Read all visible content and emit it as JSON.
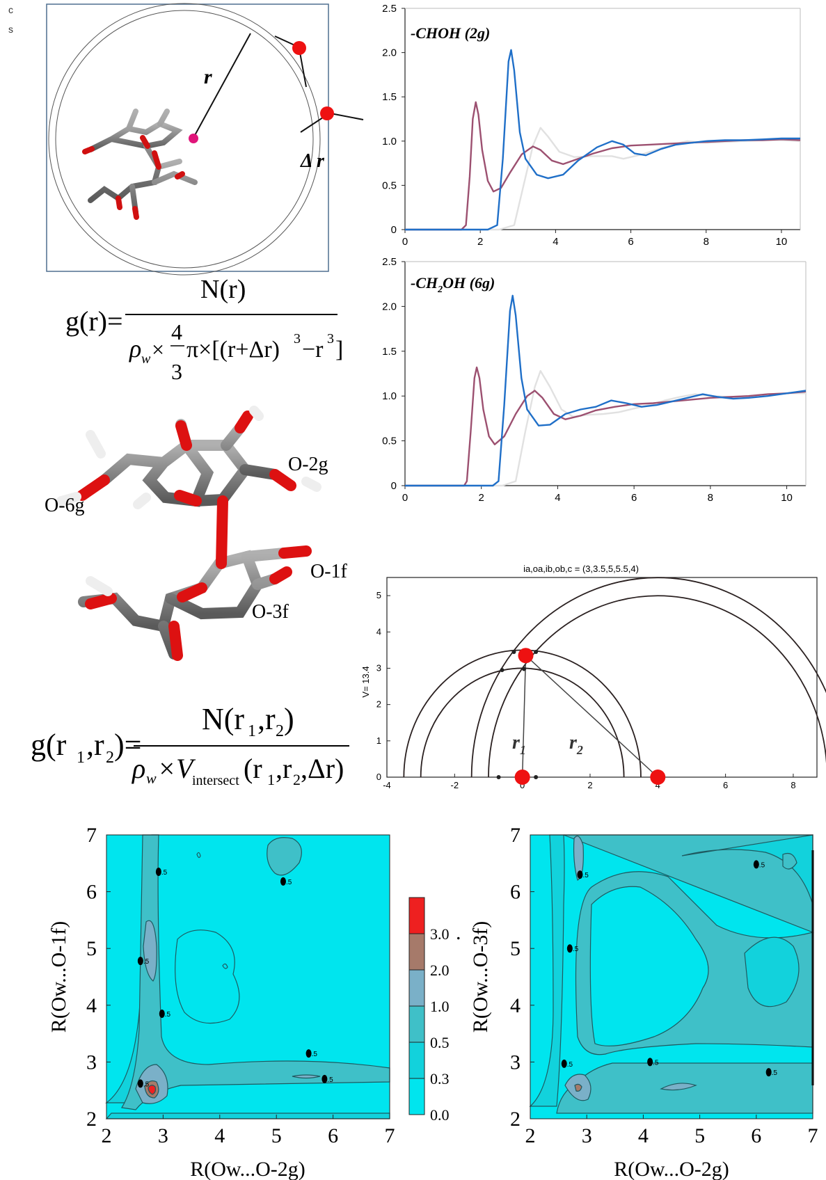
{
  "side_letters": [
    "c",
    "s"
  ],
  "schematic": {
    "r_label": "r",
    "dr_label": "Δ r"
  },
  "equation1": {
    "g": "g(r)=",
    "numerator": "N(r)",
    "denominator_a": "ρ",
    "denominator_w": "w",
    "times": "×",
    "four": "4",
    "three": "3",
    "rest": "π×[(r+Δr)",
    "cube": "3",
    "minus": "−r",
    "close": "]"
  },
  "molecule_labels": {
    "o2g": "O-2g",
    "o6g": "O-6g",
    "o1f": "O-1f",
    "o3f": "O-3f"
  },
  "equation2": {
    "g": "g(r",
    "sub1": "1",
    "comma": ",r",
    "sub2": "2",
    "close": ")=",
    "numerator": "N(r",
    "num_sub1": "1",
    "num_comma": ",r",
    "num_sub2": "2",
    "num_close": ")",
    "rho": "ρ",
    "w": "w",
    "times": "×V",
    "intersect": "intersect",
    "args": "(r",
    "a_sub1": "1",
    "a_comma": ",r",
    "a_sub2": "2",
    "a_close": ",Δr)"
  },
  "chart_data": [
    {
      "type": "line",
      "title": "-CHOH (2g)",
      "xlim": [
        0,
        10.5
      ],
      "ylim": [
        0,
        2.5
      ],
      "x_ticks": [
        "0",
        "2",
        "4",
        "6",
        "8",
        "10"
      ],
      "y_ticks": [
        "0",
        "0.5",
        "1.0",
        "1.5",
        "2.0",
        "2.5"
      ],
      "series": [
        {
          "color": "#1f6fc8",
          "points": [
            [
              0,
              0
            ],
            [
              2.2,
              0
            ],
            [
              2.45,
              0.05
            ],
            [
              2.6,
              0.8
            ],
            [
              2.75,
              1.9
            ],
            [
              2.82,
              2.03
            ],
            [
              2.9,
              1.8
            ],
            [
              3.05,
              1.1
            ],
            [
              3.2,
              0.8
            ],
            [
              3.5,
              0.62
            ],
            [
              3.8,
              0.58
            ],
            [
              4.2,
              0.62
            ],
            [
              4.6,
              0.78
            ],
            [
              5.1,
              0.93
            ],
            [
              5.5,
              1.0
            ],
            [
              5.8,
              0.96
            ],
            [
              6.1,
              0.86
            ],
            [
              6.4,
              0.84
            ],
            [
              6.8,
              0.91
            ],
            [
              7.2,
              0.96
            ],
            [
              7.6,
              0.98
            ],
            [
              8.0,
              1.0
            ],
            [
              8.5,
              1.01
            ],
            [
              9.0,
              1.01
            ],
            [
              9.5,
              1.02
            ],
            [
              10,
              1.03
            ],
            [
              10.5,
              1.03
            ]
          ]
        },
        {
          "color": "#9c5070",
          "points": [
            [
              0,
              0
            ],
            [
              1.5,
              0
            ],
            [
              1.62,
              0.05
            ],
            [
              1.72,
              0.6
            ],
            [
              1.8,
              1.25
            ],
            [
              1.88,
              1.44
            ],
            [
              1.95,
              1.3
            ],
            [
              2.05,
              0.9
            ],
            [
              2.2,
              0.55
            ],
            [
              2.35,
              0.43
            ],
            [
              2.55,
              0.47
            ],
            [
              2.8,
              0.65
            ],
            [
              3.1,
              0.85
            ],
            [
              3.4,
              0.94
            ],
            [
              3.6,
              0.9
            ],
            [
              3.9,
              0.78
            ],
            [
              4.2,
              0.74
            ],
            [
              4.6,
              0.8
            ],
            [
              5.0,
              0.86
            ],
            [
              5.5,
              0.92
            ],
            [
              6.0,
              0.95
            ],
            [
              6.5,
              0.96
            ],
            [
              7.0,
              0.97
            ],
            [
              7.5,
              0.98
            ],
            [
              8.0,
              0.99
            ],
            [
              8.5,
              1.0
            ],
            [
              9.0,
              1.01
            ],
            [
              9.5,
              1.01
            ],
            [
              10,
              1.02
            ],
            [
              10.5,
              1.01
            ]
          ]
        },
        {
          "color": "#e1e1e1",
          "points": [
            [
              0,
              0
            ],
            [
              2.5,
              0
            ],
            [
              2.9,
              0.05
            ],
            [
              3.15,
              0.5
            ],
            [
              3.4,
              0.95
            ],
            [
              3.6,
              1.15
            ],
            [
              3.8,
              1.05
            ],
            [
              4.1,
              0.88
            ],
            [
              4.5,
              0.82
            ],
            [
              5.0,
              0.83
            ],
            [
              5.5,
              0.83
            ],
            [
              5.8,
              0.8
            ],
            [
              6.3,
              0.85
            ],
            [
              6.8,
              0.92
            ],
            [
              7.2,
              0.97
            ],
            [
              7.5,
              1.0
            ],
            [
              8.0,
              0.98
            ],
            [
              8.5,
              0.99
            ],
            [
              9.0,
              1.0
            ],
            [
              9.5,
              1.01
            ],
            [
              10,
              1.01
            ],
            [
              10.5,
              1.0
            ]
          ]
        }
      ]
    },
    {
      "type": "line",
      "title": "-CH2OH (6g)",
      "xlim": [
        0,
        10.5
      ],
      "ylim": [
        0,
        2.5
      ],
      "x_ticks": [
        "0",
        "2",
        "4",
        "6",
        "8",
        "10"
      ],
      "y_ticks": [
        "0",
        "0.5",
        "1.0",
        "1.5",
        "2.0",
        "2.5"
      ],
      "series": [
        {
          "color": "#1f6fc8",
          "points": [
            [
              0,
              0
            ],
            [
              2.3,
              0
            ],
            [
              2.45,
              0.05
            ],
            [
              2.6,
              0.9
            ],
            [
              2.75,
              1.95
            ],
            [
              2.82,
              2.12
            ],
            [
              2.9,
              1.9
            ],
            [
              3.05,
              1.2
            ],
            [
              3.2,
              0.85
            ],
            [
              3.5,
              0.67
            ],
            [
              3.8,
              0.68
            ],
            [
              4.2,
              0.8
            ],
            [
              4.6,
              0.85
            ],
            [
              5.0,
              0.88
            ],
            [
              5.4,
              0.95
            ],
            [
              5.8,
              0.92
            ],
            [
              6.2,
              0.88
            ],
            [
              6.6,
              0.9
            ],
            [
              7.0,
              0.94
            ],
            [
              7.4,
              0.98
            ],
            [
              7.8,
              1.02
            ],
            [
              8.2,
              0.99
            ],
            [
              8.6,
              0.97
            ],
            [
              9.0,
              0.98
            ],
            [
              9.5,
              1.0
            ],
            [
              10,
              1.03
            ],
            [
              10.5,
              1.06
            ]
          ]
        },
        {
          "color": "#9c5070",
          "points": [
            [
              0,
              0
            ],
            [
              1.55,
              0
            ],
            [
              1.62,
              0.05
            ],
            [
              1.72,
              0.6
            ],
            [
              1.82,
              1.2
            ],
            [
              1.88,
              1.32
            ],
            [
              1.95,
              1.2
            ],
            [
              2.05,
              0.85
            ],
            [
              2.2,
              0.55
            ],
            [
              2.35,
              0.46
            ],
            [
              2.6,
              0.55
            ],
            [
              2.9,
              0.8
            ],
            [
              3.2,
              1.0
            ],
            [
              3.4,
              1.06
            ],
            [
              3.6,
              0.98
            ],
            [
              3.9,
              0.8
            ],
            [
              4.2,
              0.74
            ],
            [
              4.6,
              0.78
            ],
            [
              5.0,
              0.84
            ],
            [
              5.5,
              0.88
            ],
            [
              6.0,
              0.91
            ],
            [
              6.5,
              0.92
            ],
            [
              7.0,
              0.94
            ],
            [
              7.5,
              0.96
            ],
            [
              8.0,
              0.98
            ],
            [
              8.5,
              0.99
            ],
            [
              9.0,
              1.0
            ],
            [
              9.5,
              1.02
            ],
            [
              10,
              1.03
            ],
            [
              10.5,
              1.05
            ]
          ]
        },
        {
          "color": "#e1e1e1",
          "points": [
            [
              0,
              0
            ],
            [
              2.55,
              0
            ],
            [
              2.9,
              0.05
            ],
            [
              3.15,
              0.6
            ],
            [
              3.4,
              1.1
            ],
            [
              3.55,
              1.28
            ],
            [
              3.8,
              1.1
            ],
            [
              4.1,
              0.85
            ],
            [
              4.4,
              0.77
            ],
            [
              4.8,
              0.79
            ],
            [
              5.2,
              0.8
            ],
            [
              5.6,
              0.82
            ],
            [
              6.0,
              0.86
            ],
            [
              6.4,
              0.9
            ],
            [
              6.8,
              0.95
            ],
            [
              7.2,
              0.99
            ],
            [
              7.6,
              1.02
            ],
            [
              8.0,
              1.0
            ],
            [
              8.5,
              0.99
            ],
            [
              9.0,
              1.0
            ],
            [
              9.5,
              1.02
            ],
            [
              10,
              1.03
            ],
            [
              10.5,
              1.03
            ]
          ]
        }
      ]
    },
    {
      "type": "scatter",
      "title": "ia,oa,ib,ob,c = (3,3.5,5,5.5,4)",
      "ylabel": "V= 13.4",
      "xlim": [
        -4,
        8.7
      ],
      "ylim": [
        0,
        5.5
      ],
      "x_ticks": [
        "-4",
        "-2",
        "0",
        "2",
        "4",
        "6",
        "8"
      ],
      "y_ticks": [
        "0",
        "1",
        "2",
        "3",
        "4",
        "5"
      ],
      "circles": [
        {
          "cx": 0,
          "r": 3
        },
        {
          "cx": 0,
          "r": 3.5
        },
        {
          "cx": 4,
          "r": 5
        },
        {
          "cx": 4,
          "r": 5.5
        }
      ],
      "red_points": [
        [
          0,
          0
        ],
        [
          4,
          0
        ],
        [
          0.1,
          3.35
        ]
      ],
      "labels": {
        "r1": "r",
        "r1_sub": "1",
        "r2": "r",
        "r2_sub": "2"
      }
    },
    {
      "type": "heatmap",
      "xlabel": "R(Ow...O-2g)",
      "ylabel": "R(Ow...O-1f)",
      "xlim": [
        2,
        7
      ],
      "ylim": [
        2,
        7
      ],
      "x_ticks": [
        "2",
        "3",
        "4",
        "5",
        "6",
        "7"
      ],
      "y_ticks": [
        "2",
        "3",
        "4",
        "5",
        "6",
        "7"
      ],
      "contour_labels": [
        ".5",
        ".5",
        ".5",
        ".5",
        ".5",
        ".5",
        ".5"
      ]
    },
    {
      "type": "heatmap",
      "xlabel": "R(Ow...O-2g)",
      "ylabel": "R(Ow...O-3f)",
      "xlim": [
        2,
        7
      ],
      "ylim": [
        2,
        7
      ],
      "x_ticks": [
        "2",
        "3",
        "4",
        "5",
        "6",
        "7"
      ],
      "y_ticks": [
        "2",
        "3",
        "4",
        "5",
        "6",
        "7"
      ],
      "contour_labels": [
        ".5",
        ".5",
        ".5",
        ".5",
        ".5",
        ".5"
      ]
    }
  ],
  "colorbar": {
    "levels": [
      "0.0",
      "0.3",
      "0.5",
      "1.0",
      "2.0",
      "3.0"
    ],
    "colors": [
      "#00e5ee",
      "#12d2dc",
      "#3fc0c8",
      "#7ab0c8",
      "#a67a6a",
      "#ee2020"
    ]
  },
  "dot_mark": "."
}
